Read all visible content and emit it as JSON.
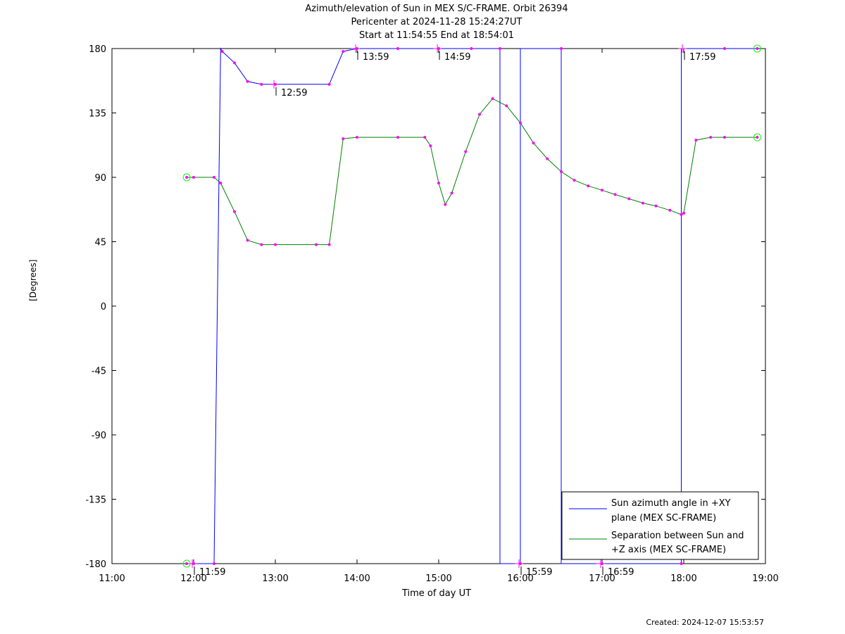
{
  "header": {
    "title_line1": "Azimuth/elevation of Sun in MEX S/C-FRAME.  Orbit 26394",
    "title_line2": "Pericenter at 2024-11-28 15:24:27UT",
    "title_line3": "Start at 11:54:55 End at 18:54:01"
  },
  "footer": {
    "created": "Created: 2024-12-07 15:53:57"
  },
  "colors": {
    "azimuth": "#0000ff",
    "separation": "#008000",
    "markers": "#ff00ff",
    "endpoints": "#00ff00"
  },
  "chart_data": {
    "type": "line",
    "xlabel": "Time of day UT",
    "ylabel": "[Degrees]",
    "xlim": [
      11.0,
      19.0
    ],
    "ylim": [
      -180,
      180
    ],
    "xticks": [
      11,
      12,
      13,
      14,
      15,
      16,
      17,
      18,
      19
    ],
    "xtick_labels": [
      "11:00",
      "12:00",
      "13:00",
      "14:00",
      "15:00",
      "16:00",
      "17:00",
      "18:00",
      "19:00"
    ],
    "yticks": [
      180,
      135,
      90,
      45,
      0,
      -45,
      -90,
      -135,
      -180
    ],
    "ytick_labels": [
      "180",
      "135",
      "90",
      "45",
      "0",
      "-45",
      "-90",
      "-135",
      "-180"
    ],
    "legend_position": "bottom-right",
    "series": [
      {
        "name": "Sun azimuth angle in +XY plane (MEX SC-FRAME)",
        "legend_lines": [
          "Sun azimuth angle in +XY",
          "plane (MEX SC-FRAME)"
        ],
        "x": [
          11.915,
          12.0,
          12.25,
          12.33,
          12.35,
          12.5,
          12.66,
          12.83,
          13.0,
          13.66,
          13.83,
          14.0,
          14.5,
          15.0,
          15.4,
          15.75,
          15.75,
          16.0,
          16.0,
          16.5,
          16.5,
          17.0,
          17.97,
          17.97,
          18.5,
          18.9
        ],
        "y": [
          -180,
          -180,
          -180,
          180,
          178,
          170,
          157,
          155,
          155,
          155,
          178,
          180,
          180,
          180,
          180,
          180,
          -180,
          -180,
          180,
          180,
          -180,
          -180,
          -180,
          180,
          180,
          180
        ]
      },
      {
        "name": "Separation between Sun and +Z axis (MEX SC-FRAME)",
        "legend_lines": [
          "Separation between Sun and",
          "+Z axis (MEX SC-FRAME)"
        ],
        "x": [
          11.915,
          12.0,
          12.25,
          12.33,
          12.5,
          12.66,
          12.83,
          13.0,
          13.5,
          13.66,
          13.83,
          14.0,
          14.5,
          14.83,
          14.9,
          15.0,
          15.08,
          15.16,
          15.33,
          15.5,
          15.66,
          15.83,
          16.0,
          16.16,
          16.33,
          16.5,
          16.66,
          16.83,
          17.0,
          17.16,
          17.33,
          17.5,
          17.66,
          17.83,
          17.97,
          18.0,
          18.15,
          18.33,
          18.5,
          18.9
        ],
        "y": [
          90,
          90,
          90,
          86,
          66,
          46,
          43,
          43,
          43,
          43,
          117,
          118,
          118,
          118,
          112,
          86,
          71,
          79,
          108,
          134,
          145,
          140,
          128,
          114,
          103,
          94,
          88,
          84,
          81,
          78,
          75,
          72,
          70,
          67,
          64,
          65,
          116,
          118,
          118,
          118
        ]
      }
    ],
    "hour_markers": [
      {
        "label": "11:59",
        "x": 11.983,
        "y": -180
      },
      {
        "label": "12:59",
        "x": 12.983,
        "y": 155
      },
      {
        "label": "13:59",
        "x": 13.983,
        "y": 180
      },
      {
        "label": "14:59",
        "x": 14.983,
        "y": 180
      },
      {
        "label": "15:59",
        "x": 15.983,
        "y": -180
      },
      {
        "label": "16:59",
        "x": 16.983,
        "y": -180
      },
      {
        "label": "17:59",
        "x": 17.983,
        "y": 180
      }
    ]
  }
}
